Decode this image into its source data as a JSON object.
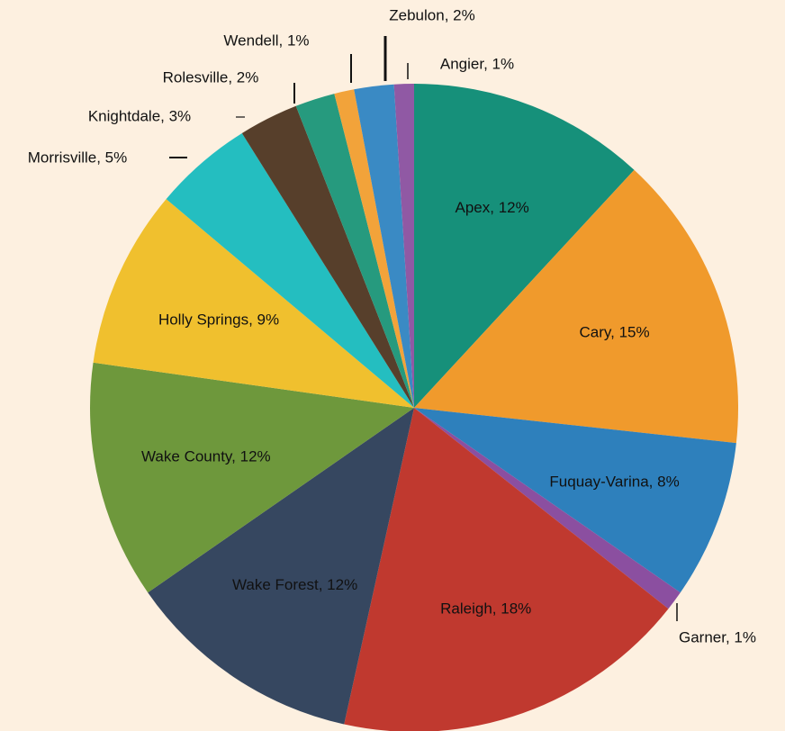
{
  "chart_data": {
    "type": "pie",
    "value_labels": [
      "Apex, 12%",
      "Cary, 15%",
      "Fuquay-Varina, 8%",
      "Garner, 1%",
      "Raleigh, 18%",
      "Wake Forest, 12%",
      "Wake County, 12%",
      "Holly Springs, 9%",
      "Morrisville, 5%",
      "Knightdale, 3%",
      "Rolesville, 2%",
      "Wendell, 1%",
      "Zebulon, 2%",
      "Angier, 1%"
    ],
    "values": [
      12,
      15,
      8,
      1,
      18,
      12,
      12,
      9,
      5,
      3,
      2,
      1,
      2,
      1
    ],
    "colors": [
      "#16907a",
      "#f09a2c",
      "#2e80bc",
      "#8b4fa0",
      "#c0392f",
      "#364760",
      "#6e983c",
      "#f0c02e",
      "#24bec0",
      "#573f2b",
      "#269a7e",
      "#f2a33a",
      "#3a8ac4",
      "#9059a4"
    ]
  }
}
